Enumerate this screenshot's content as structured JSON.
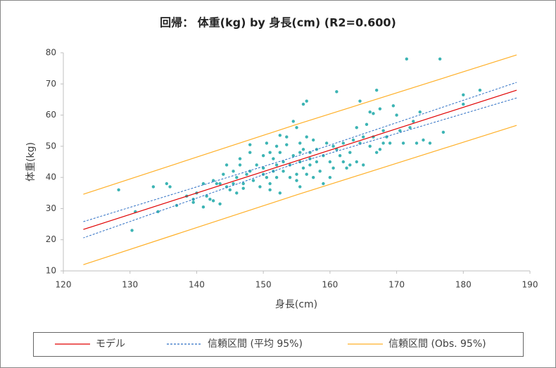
{
  "chart_data": {
    "type": "scatter",
    "title": "回帰： 体重(kg) by 身長(cm) (R2=0.600)",
    "x_label": "身長(cm)",
    "y_label": "体重(kg)",
    "xlim": [
      120,
      190
    ],
    "xticks": [
      120,
      130,
      140,
      150,
      160,
      170,
      180,
      190
    ],
    "ylim": [
      10,
      80
    ],
    "yticks": [
      10,
      20,
      30,
      40,
      50,
      60,
      70,
      80
    ],
    "grid": false,
    "legend": "bottom",
    "points": {
      "color": "#3cb4b4",
      "x": [
        128.3,
        130.3,
        130.8,
        133.5,
        134.2,
        135.5,
        136,
        137,
        138.5,
        139.5,
        139.5,
        140,
        141,
        141,
        141.5,
        142,
        142.5,
        142.5,
        143,
        143.5,
        143.5,
        144,
        144.5,
        144.5,
        145,
        145.5,
        145.5,
        146,
        146,
        146.5,
        146.5,
        147,
        147,
        147.5,
        148,
        148,
        148,
        148.5,
        149,
        149.5,
        150,
        150,
        150,
        150.5,
        150.5,
        151,
        151,
        151,
        151.5,
        151.5,
        152,
        152,
        152,
        152.5,
        152.5,
        152.5,
        153,
        153,
        153.5,
        153.5,
        154,
        154,
        154.5,
        154.5,
        155,
        155,
        155,
        155.5,
        155.5,
        155.5,
        155.5,
        156,
        156,
        156,
        156.5,
        156.5,
        156.5,
        157,
        157,
        157,
        157.5,
        157.5,
        158,
        158,
        158.5,
        159,
        159,
        159.5,
        160,
        160,
        160.5,
        160.5,
        161,
        161,
        161.5,
        162,
        162,
        162.5,
        163,
        163,
        163.5,
        164,
        164,
        164.5,
        164.5,
        165,
        165,
        165.5,
        166,
        166,
        166.5,
        166.5,
        167,
        167,
        167.5,
        167.5,
        168,
        168,
        168.5,
        169,
        169.5,
        170,
        170.5,
        171,
        171.5,
        172,
        172.5,
        173,
        173.5,
        174,
        175,
        176.5,
        177,
        180,
        180,
        182.5
      ],
      "values": [
        36,
        23,
        29,
        37,
        29,
        38,
        37,
        31,
        34,
        33,
        32,
        35,
        30.5,
        38,
        34,
        33,
        39,
        32.5,
        38,
        38,
        31.5,
        41,
        37,
        44,
        36,
        38,
        42,
        40,
        35,
        46,
        44,
        38,
        36.5,
        41,
        50.5,
        42,
        48,
        39,
        44,
        37,
        41,
        47,
        43,
        51,
        40,
        38,
        36,
        48,
        46,
        42,
        50,
        44,
        40,
        53.5,
        48,
        35,
        45,
        42,
        50.5,
        53,
        44,
        40,
        58,
        47,
        56,
        41,
        39,
        51,
        48,
        45,
        37,
        63.5,
        49,
        43,
        64.5,
        53,
        41,
        48,
        46,
        44,
        52,
        40,
        49,
        45,
        42,
        47,
        38,
        51,
        45,
        40,
        50,
        43,
        67.5,
        49,
        47,
        51,
        45,
        43,
        48,
        44,
        52,
        56,
        45,
        64.5,
        51,
        53,
        44,
        57,
        61,
        50,
        60.5,
        53,
        68,
        48,
        62,
        49,
        55,
        51,
        53,
        51,
        63,
        60,
        55,
        51,
        78,
        56,
        58,
        51,
        61,
        52,
        51,
        78,
        54.5,
        63.5,
        66.5,
        68
      ]
    },
    "series": [
      {
        "name": "モデル",
        "color": "#e00000",
        "dash": false,
        "x": [
          123,
          188
        ],
        "values": [
          23.3,
          68.0
        ]
      },
      {
        "name": "信頼区間 (平均 95%)",
        "color": "#2e6fc4",
        "dash": true,
        "x": [
          123,
          155,
          188,
          188,
          155,
          123
        ],
        "values": [
          25.8,
          46.8,
          70.5,
          65.5,
          44.6,
          20.6
        ]
      },
      {
        "name": "信頼区間 (Obs. 95%)",
        "color": "#ffb028",
        "dash": false,
        "x": [
          123,
          155,
          188,
          188,
          155,
          123
        ],
        "values": [
          34.6,
          57.0,
          79.3,
          56.7,
          34.4,
          12.0
        ]
      }
    ]
  }
}
